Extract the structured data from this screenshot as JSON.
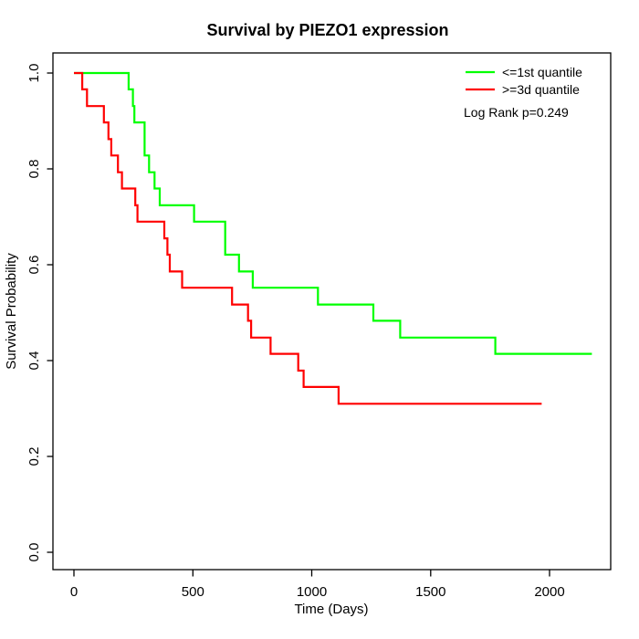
{
  "chart_data": {
    "type": "line",
    "subtype": "kaplan-meier-step",
    "title": "Survival by PIEZO1 expression",
    "xlabel": "Time (Days)",
    "ylabel": "Survival Probability",
    "xlim": [
      0,
      2200
    ],
    "ylim": [
      0,
      1
    ],
    "x_ticks": [
      0,
      500,
      1000,
      1500,
      2000
    ],
    "y_ticks": [
      0.0,
      0.2,
      0.4,
      0.6,
      0.8,
      1.0
    ],
    "grid": false,
    "legend_position": "top-right-inside",
    "annotation": "Log Rank p=0.249",
    "series": [
      {
        "name": "<=1st quantile",
        "color": "#00ff00",
        "points": [
          [
            0,
            1.0
          ],
          [
            230,
            0.966
          ],
          [
            248,
            0.931
          ],
          [
            254,
            0.897
          ],
          [
            297,
            0.828
          ],
          [
            316,
            0.793
          ],
          [
            339,
            0.759
          ],
          [
            361,
            0.724
          ],
          [
            505,
            0.69
          ],
          [
            636,
            0.621
          ],
          [
            694,
            0.586
          ],
          [
            752,
            0.552
          ],
          [
            1026,
            0.517
          ],
          [
            1259,
            0.483
          ],
          [
            1372,
            0.448
          ],
          [
            1772,
            0.414
          ],
          [
            2178,
            0.414
          ]
        ]
      },
      {
        "name": ">=3d quantile",
        "color": "#ff0000",
        "points": [
          [
            0,
            1.0
          ],
          [
            35,
            0.966
          ],
          [
            55,
            0.931
          ],
          [
            126,
            0.897
          ],
          [
            145,
            0.862
          ],
          [
            157,
            0.828
          ],
          [
            185,
            0.793
          ],
          [
            202,
            0.759
          ],
          [
            258,
            0.724
          ],
          [
            267,
            0.69
          ],
          [
            380,
            0.655
          ],
          [
            393,
            0.621
          ],
          [
            403,
            0.586
          ],
          [
            455,
            0.552
          ],
          [
            665,
            0.517
          ],
          [
            732,
            0.483
          ],
          [
            745,
            0.448
          ],
          [
            827,
            0.414
          ],
          [
            943,
            0.379
          ],
          [
            966,
            0.345
          ],
          [
            1113,
            0.31
          ],
          [
            1967,
            0.31
          ]
        ]
      }
    ]
  }
}
